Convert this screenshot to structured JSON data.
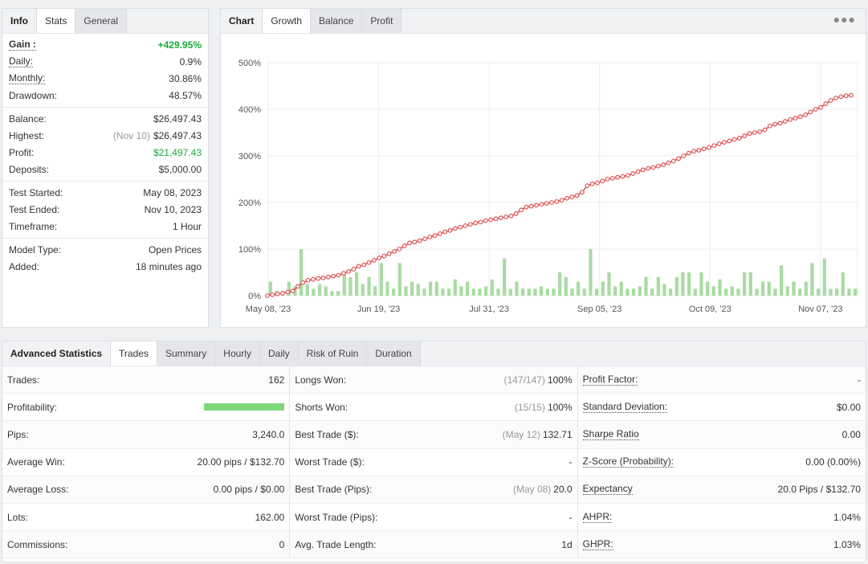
{
  "info": {
    "tabs": [
      "Info",
      "Stats",
      "General"
    ],
    "groups": [
      [
        {
          "label": "Gain :",
          "value": "+429.95%",
          "underline": true,
          "bold": true,
          "green": true
        },
        {
          "label": "Daily:",
          "value": "0.9%",
          "underline": true
        },
        {
          "label": "Monthly:",
          "value": "30.86%",
          "underline": true
        },
        {
          "label": "Drawdown:",
          "value": "48.57%"
        }
      ],
      [
        {
          "label": "Balance:",
          "value": "$26,497.43"
        },
        {
          "label": "Highest:",
          "value": "$26,497.43",
          "note": "(Nov 10)"
        },
        {
          "label": "Profit:",
          "value": "$21,497.43",
          "green": true
        },
        {
          "label": "Deposits:",
          "value": "$5,000.00"
        }
      ],
      [
        {
          "label": "Test Started:",
          "value": "May 08, 2023"
        },
        {
          "label": "Test Ended:",
          "value": "Nov 10, 2023"
        },
        {
          "label": "Timeframe:",
          "value": "1 Hour"
        }
      ],
      [
        {
          "label": "Model Type:",
          "value": "Open Prices"
        },
        {
          "label": "Added:",
          "value": "18 minutes ago"
        }
      ]
    ]
  },
  "chart": {
    "tabs": [
      "Chart",
      "Growth",
      "Balance",
      "Profit"
    ],
    "menu_icon": "more-dots-icon"
  },
  "chart_data": {
    "type": "line",
    "y_ticks": [
      "500%",
      "400%",
      "300%",
      "200%",
      "100%",
      "0%"
    ],
    "ylim": [
      0,
      500
    ],
    "x_ticks": [
      "May 08, '23",
      "Jun 19, '23",
      "Jul 31, '23",
      "Sep 05, '23",
      "Oct 09, '23",
      "Nov 07, '23"
    ],
    "colors": {
      "line": "#e05555",
      "bars": "#a9dba3",
      "grid": "#ececec"
    },
    "series": [
      {
        "type": "line",
        "values": [
          0,
          2,
          4,
          5,
          8,
          10,
          20,
          28,
          33,
          35,
          37,
          38,
          40,
          42,
          44,
          48,
          52,
          57,
          63,
          66,
          71,
          76,
          81,
          85,
          90,
          95,
          100,
          107,
          113,
          115,
          118,
          122,
          126,
          129,
          133,
          137,
          140,
          144,
          147,
          150,
          153,
          156,
          158,
          161,
          163,
          165,
          167,
          169,
          171,
          176,
          184,
          190,
          192,
          194,
          196,
          198,
          200,
          202,
          205,
          209,
          212,
          215,
          222,
          236,
          240,
          242,
          246,
          250,
          252,
          254,
          256,
          258,
          262,
          266,
          270,
          273,
          275,
          278,
          281,
          285,
          289,
          294,
          300,
          306,
          310,
          312,
          315,
          318,
          322,
          326,
          329,
          332,
          335,
          338,
          343,
          348,
          350,
          352,
          356,
          364,
          368,
          370,
          374,
          378,
          381,
          384,
          388,
          394,
          400,
          404,
          412,
          419,
          424,
          427,
          429,
          430
        ]
      },
      {
        "type": "bar",
        "values": [
          30,
          10,
          10,
          30,
          20,
          100,
          25,
          15,
          25,
          20,
          10,
          10,
          50,
          40,
          50,
          25,
          40,
          20,
          70,
          30,
          15,
          70,
          20,
          30,
          25,
          15,
          30,
          30,
          15,
          15,
          35,
          20,
          30,
          15,
          15,
          20,
          35,
          15,
          80,
          15,
          30,
          15,
          15,
          15,
          20,
          15,
          15,
          50,
          40,
          15,
          30,
          15,
          100,
          15,
          30,
          50,
          20,
          30,
          15,
          15,
          20,
          40,
          15,
          40,
          25,
          15,
          40,
          50,
          50,
          15,
          50,
          30,
          20,
          35,
          15,
          20,
          15,
          50,
          50,
          15,
          30,
          30,
          15,
          65,
          20,
          30,
          15,
          30,
          70,
          15,
          80,
          15,
          15,
          50,
          15,
          15
        ]
      }
    ]
  },
  "advanced": {
    "tabs": [
      "Advanced Statistics",
      "Trades",
      "Summary",
      "Hourly",
      "Daily",
      "Risk of Ruin",
      "Duration"
    ],
    "columns": [
      [
        {
          "label": "Trades:",
          "value": "162"
        },
        {
          "label": "Profitability:",
          "value": "",
          "bar": 1.0
        },
        {
          "label": "Pips:",
          "value": "3,240.0"
        },
        {
          "label": "Average Win:",
          "value": "20.00 pips / $132.70"
        },
        {
          "label": "Average Loss:",
          "value": "0.00 pips / $0.00"
        },
        {
          "label": "Lots:",
          "value": "162.00"
        },
        {
          "label": "Commissions:",
          "value": "0"
        }
      ],
      [
        {
          "label": "Longs Won:",
          "value": "100%",
          "note": "(147/147)"
        },
        {
          "label": "Shorts Won:",
          "value": "100%",
          "note": "(15/15)"
        },
        {
          "label": "Best Trade ($):",
          "value": "132.71",
          "note": "(May 12)"
        },
        {
          "label": "Worst Trade ($):",
          "value": "-"
        },
        {
          "label": "Best Trade (Pips):",
          "value": "20.0",
          "note": "(May 08)"
        },
        {
          "label": "Worst Trade (Pips):",
          "value": "-"
        },
        {
          "label": "Avg. Trade Length:",
          "value": "1d"
        }
      ],
      [
        {
          "label": "Profit Factor:",
          "value": "-",
          "underline": true
        },
        {
          "label": "Standard Deviation:",
          "value": "$0.00",
          "underline": true
        },
        {
          "label": "Sharpe Ratio",
          "value": "0.00",
          "underline": true
        },
        {
          "label": "Z-Score (Probability):",
          "value": "0.00 (0.00%)",
          "underline": true
        },
        {
          "label": "Expectancy",
          "value": "20.0 Pips / $132.70",
          "underline": true
        },
        {
          "label": "AHPR:",
          "value": "1.04%",
          "underline": true
        },
        {
          "label": "GHPR:",
          "value": "1.03%",
          "underline": true
        }
      ]
    ]
  }
}
